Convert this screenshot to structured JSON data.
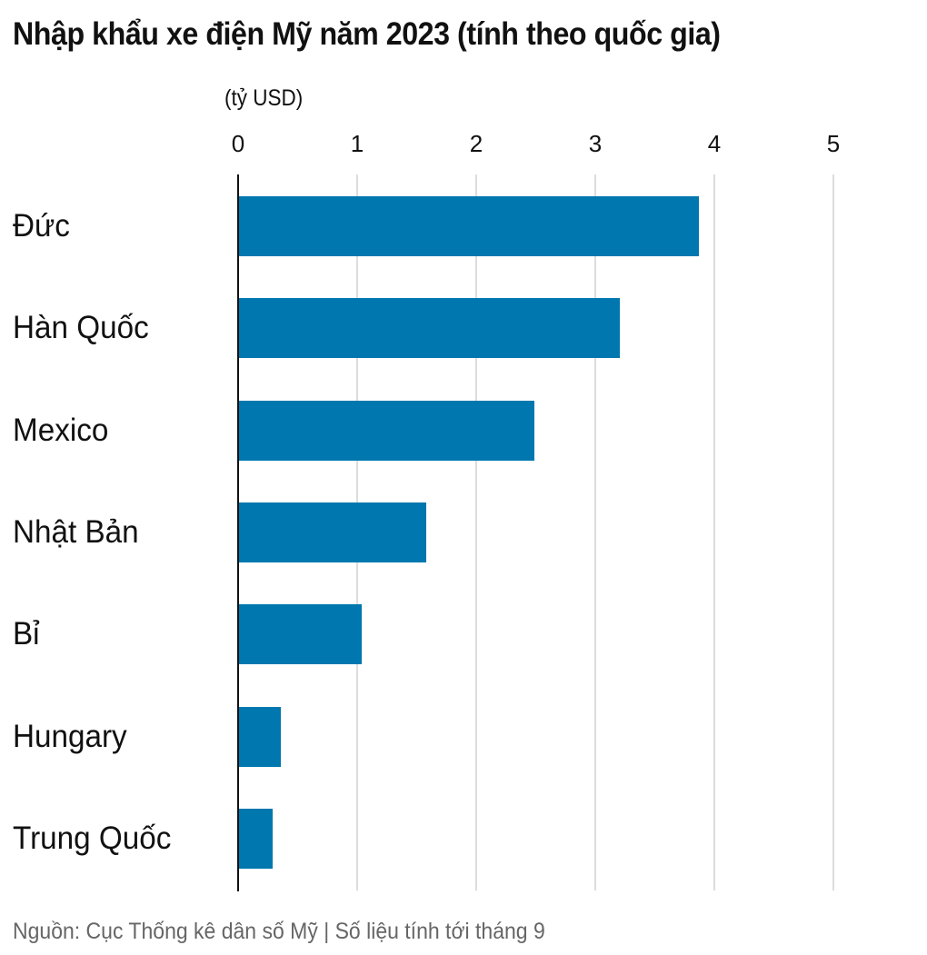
{
  "title": "Nhập khẩu xe điện Mỹ năm 2023 (tính theo quốc gia)",
  "unit_label": "(tỷ USD)",
  "footer": "Nguồn: Cục Thống kê dân số Mỹ | Số liệu tính tới tháng 9",
  "colors": {
    "bar": "#0077ae",
    "grid": "#dcdcdc",
    "axis": "#111111"
  },
  "ticks": [
    "0",
    "1",
    "2",
    "3",
    "4",
    "5"
  ],
  "chart_data": {
    "type": "bar",
    "orientation": "horizontal",
    "title": "Nhập khẩu xe điện Mỹ năm 2023 (tính theo quốc gia)",
    "xlabel": "(tỷ USD)",
    "ylabel": "",
    "categories": [
      "Đức",
      "Hàn Quốc",
      "Mexico",
      "Nhật Bản",
      "Bỉ",
      "Hungary",
      "Trung Quốc"
    ],
    "values": [
      3.86,
      3.2,
      2.48,
      1.57,
      1.03,
      0.35,
      0.28
    ],
    "xlim": [
      0,
      5
    ],
    "xticks": [
      0,
      1,
      2,
      3,
      4,
      5
    ],
    "grid": true,
    "legend": null,
    "source": "Nguồn: Cục Thống kê dân số Mỹ | Số liệu tính tới tháng 9"
  }
}
